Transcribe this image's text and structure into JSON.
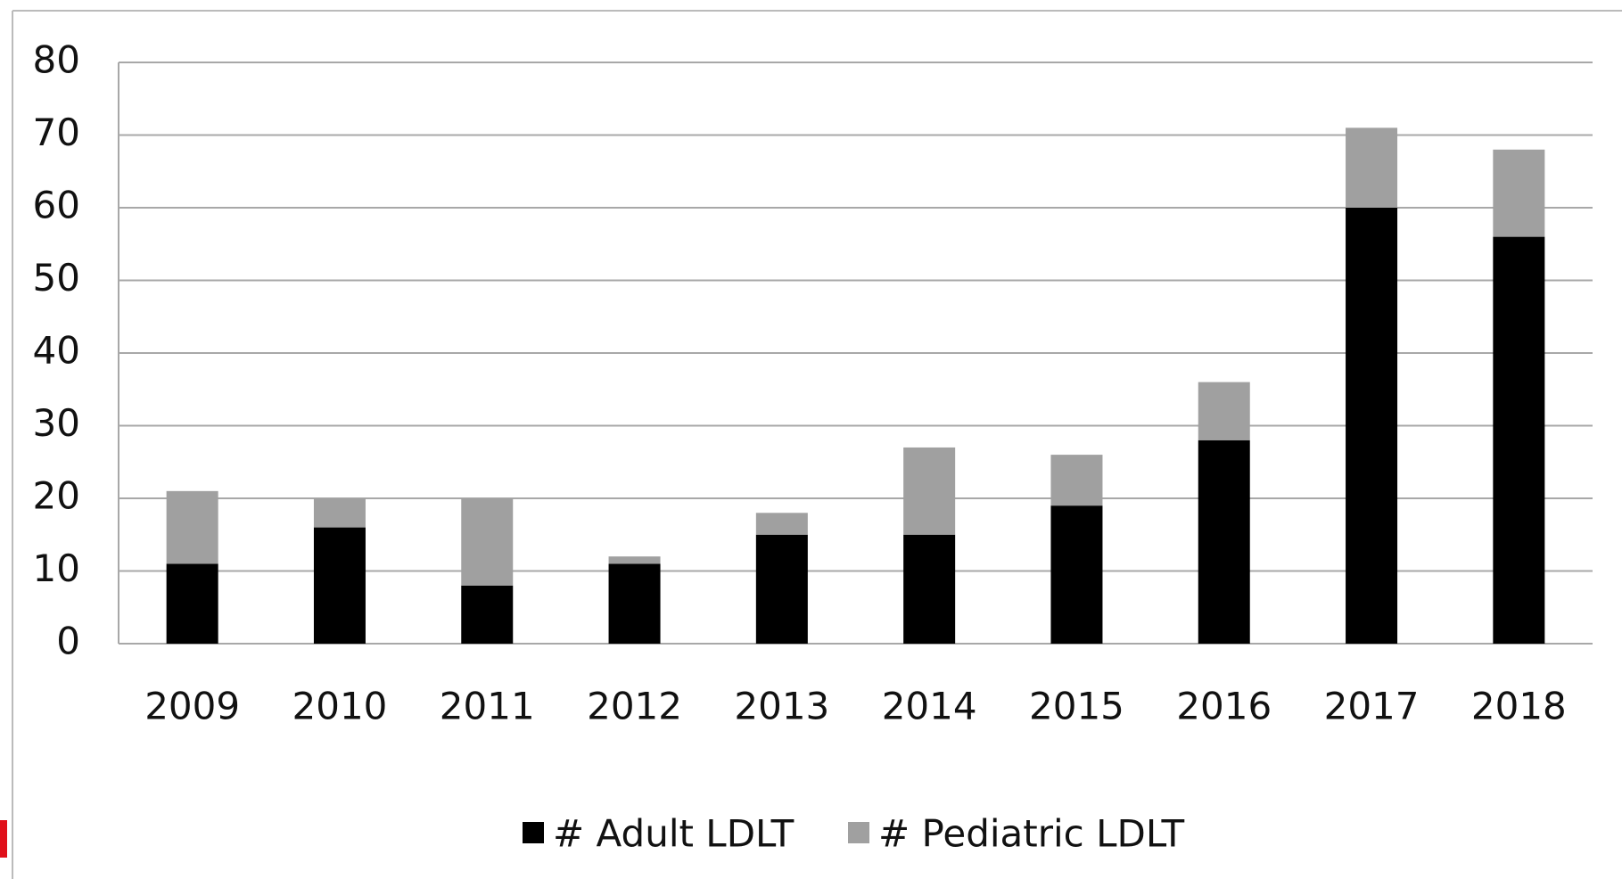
{
  "chart_data": {
    "type": "stacked_bar",
    "categories": [
      "2009",
      "2010",
      "2011",
      "2012",
      "2013",
      "2014",
      "2015",
      "2016",
      "2017",
      "2018"
    ],
    "series": [
      {
        "name": "# Adult LDLT",
        "color": "#000000",
        "values": [
          11,
          16,
          8,
          11,
          15,
          15,
          19,
          28,
          60,
          56
        ]
      },
      {
        "name": "# Pediatric LDLT",
        "color": "#a0a0a0",
        "values": [
          10,
          4,
          12,
          1,
          3,
          12,
          7,
          8,
          11,
          12
        ]
      }
    ],
    "ylim": [
      0,
      80
    ],
    "yticks": [
      0,
      10,
      20,
      30,
      40,
      50,
      60,
      70,
      80
    ],
    "grid": true,
    "legend": "bottom"
  }
}
